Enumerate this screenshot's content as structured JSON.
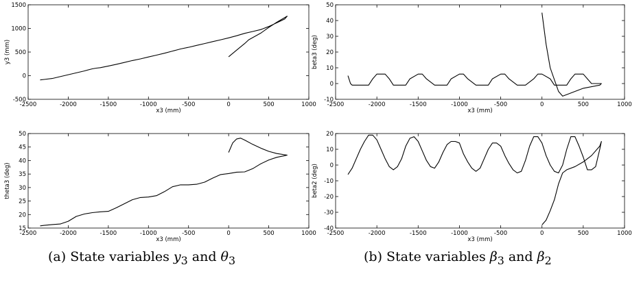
{
  "chart_data": [
    {
      "id": "y3",
      "type": "line",
      "xlabel": "x3    (mm)",
      "ylabel": "y3    (mm)",
      "xlim": [
        -2500,
        1000
      ],
      "ylim": [
        -500,
        1500
      ],
      "xticks": [
        -2500,
        -2000,
        -1500,
        -1000,
        -500,
        0,
        500,
        1000
      ],
      "yticks": [
        -500,
        0,
        500,
        1000,
        1500
      ],
      "series": [
        {
          "x": [
            -2350,
            -2300,
            -2200,
            -2100,
            -2000,
            -1900,
            -1800,
            -1700,
            -1650,
            -1600,
            -1500,
            -1400,
            -1300,
            -1200,
            -1100,
            -1000,
            -900,
            -800,
            -700,
            -600,
            -500,
            -400,
            -300,
            -200,
            -100,
            0,
            100,
            200,
            300,
            400,
            500,
            600,
            700,
            720,
            730,
            600,
            500,
            400,
            250,
            200,
            100,
            0
          ],
          "y": [
            -90,
            -80,
            -60,
            -20,
            20,
            60,
            100,
            145,
            160,
            170,
            205,
            240,
            280,
            320,
            355,
            395,
            435,
            475,
            520,
            565,
            600,
            640,
            680,
            720,
            760,
            800,
            845,
            895,
            935,
            975,
            1040,
            1120,
            1200,
            1240,
            1260,
            1130,
            1020,
            900,
            760,
            680,
            540,
            400
          ]
        }
      ]
    },
    {
      "id": "theta3",
      "type": "line",
      "xlabel": "x3    (mm)",
      "ylabel": "theta3    (deg)",
      "xlim": [
        -2500,
        1000
      ],
      "ylim": [
        15,
        50
      ],
      "xticks": [
        -2500,
        -2000,
        -1500,
        -1000,
        -500,
        0,
        500,
        1000
      ],
      "yticks": [
        15,
        20,
        25,
        30,
        35,
        40,
        45,
        50
      ],
      "series": [
        {
          "x": [
            -2350,
            -2300,
            -2200,
            -2100,
            -2000,
            -1900,
            -1800,
            -1700,
            -1600,
            -1500,
            -1400,
            -1300,
            -1200,
            -1100,
            -1000,
            -900,
            -800,
            -700,
            -600,
            -500,
            -400,
            -300,
            -200,
            -100,
            0,
            100,
            200,
            300,
            400,
            500,
            600,
            700,
            730,
            600,
            500,
            400,
            300,
            200,
            150,
            100,
            50,
            0
          ],
          "y": [
            15.8,
            16.0,
            16.3,
            16.5,
            17.5,
            19.3,
            20.2,
            20.7,
            21.0,
            21.2,
            22.5,
            24.0,
            25.5,
            26.3,
            26.5,
            27.0,
            28.5,
            30.3,
            31.0,
            31.0,
            31.2,
            32.0,
            33.5,
            34.8,
            35.2,
            35.7,
            35.8,
            37.0,
            38.8,
            40.2,
            41.2,
            41.8,
            42.0,
            42.6,
            43.4,
            44.6,
            46.0,
            47.6,
            48.3,
            48.0,
            46.5,
            43.0
          ]
        }
      ]
    },
    {
      "id": "beta3",
      "type": "line",
      "xlabel": "x3    (mm)",
      "ylabel": "beta3    (deg)",
      "xlim": [
        -2500,
        1000
      ],
      "ylim": [
        -10,
        50
      ],
      "xticks": [
        -2500,
        -2000,
        -1500,
        -1000,
        -500,
        0,
        500,
        1000
      ],
      "yticks": [
        -10,
        0,
        10,
        20,
        30,
        40,
        50
      ],
      "series": [
        {
          "x": [
            -2350,
            -2320,
            -2300,
            -2200,
            -2100,
            -2050,
            -2000,
            -1900,
            -1850,
            -1800,
            -1700,
            -1650,
            -1600,
            -1500,
            -1450,
            -1400,
            -1300,
            -1200,
            -1150,
            -1100,
            -1000,
            -950,
            -900,
            -800,
            -700,
            -650,
            -600,
            -500,
            -450,
            -400,
            -300,
            -250,
            -200,
            -100,
            -50,
            0,
            100,
            150,
            200,
            300,
            350,
            400,
            500,
            550,
            600,
            700,
            720,
            700,
            500,
            400,
            300,
            250,
            200,
            100,
            50,
            0
          ],
          "y": [
            5,
            0,
            -1,
            -1,
            -1,
            3,
            6,
            6,
            3,
            -1,
            -1,
            -1,
            3,
            6,
            6,
            3,
            -1,
            -1,
            -1,
            3,
            6,
            6,
            3,
            -1,
            -1,
            -1,
            3,
            6,
            6,
            3,
            -1,
            -1,
            -1,
            3,
            6,
            6,
            3,
            -1,
            -1,
            -1,
            3,
            6,
            6,
            3,
            0,
            0,
            0,
            -1,
            -3,
            -5,
            -7,
            -8,
            -5,
            10,
            25,
            45
          ]
        }
      ]
    },
    {
      "id": "beta2",
      "type": "line",
      "xlabel": "x3    (mm)",
      "ylabel": "beta2    (deg)",
      "xlim": [
        -2500,
        1000
      ],
      "ylim": [
        -40,
        20
      ],
      "xticks": [
        -2500,
        -2000,
        -1500,
        -1000,
        -500,
        0,
        500,
        1000
      ],
      "yticks": [
        -40,
        -30,
        -20,
        -10,
        0,
        10,
        20
      ],
      "series": [
        {
          "x": [
            -2350,
            -2300,
            -2250,
            -2200,
            -2150,
            -2100,
            -2050,
            -2000,
            -1950,
            -1900,
            -1850,
            -1800,
            -1750,
            -1700,
            -1650,
            -1600,
            -1550,
            -1500,
            -1450,
            -1400,
            -1350,
            -1300,
            -1250,
            -1200,
            -1150,
            -1100,
            -1050,
            -1000,
            -950,
            -900,
            -850,
            -800,
            -750,
            -700,
            -650,
            -600,
            -550,
            -500,
            -450,
            -400,
            -350,
            -300,
            -250,
            -200,
            -150,
            -100,
            -50,
            0,
            50,
            100,
            150,
            200,
            250,
            300,
            350,
            400,
            450,
            500,
            550,
            600,
            650,
            700,
            720,
            700,
            600,
            500,
            400,
            300,
            250,
            200,
            150,
            100,
            50,
            0
          ],
          "y": [
            -6,
            -2,
            4,
            10,
            15,
            19,
            19,
            16,
            10,
            4,
            -1,
            -3,
            -1,
            4,
            12,
            17,
            18,
            15,
            9,
            3,
            -1,
            -2,
            2,
            8,
            13,
            15,
            15,
            14,
            7,
            2,
            -2,
            -4,
            -2,
            4,
            10,
            14,
            14,
            12,
            6,
            1,
            -3,
            -5,
            -4,
            3,
            12,
            18,
            18,
            14,
            6,
            0,
            -4,
            -5,
            0,
            10,
            18,
            18,
            12,
            5,
            -3,
            -3,
            -1,
            10,
            15,
            12,
            6,
            2,
            -1,
            -3,
            -5,
            -12,
            -22,
            -29,
            -35,
            -38
          ]
        }
      ]
    }
  ],
  "captions": {
    "a": {
      "prefix": "(a) State variables ",
      "sym1": "y",
      "sub1": "3",
      "mid": " and ",
      "sym2": "θ",
      "sub2": "3"
    },
    "b": {
      "prefix": "(b) State variables ",
      "sym1": "β",
      "sub1": "3",
      "mid": " and ",
      "sym2": "β",
      "sub2": "2"
    }
  }
}
